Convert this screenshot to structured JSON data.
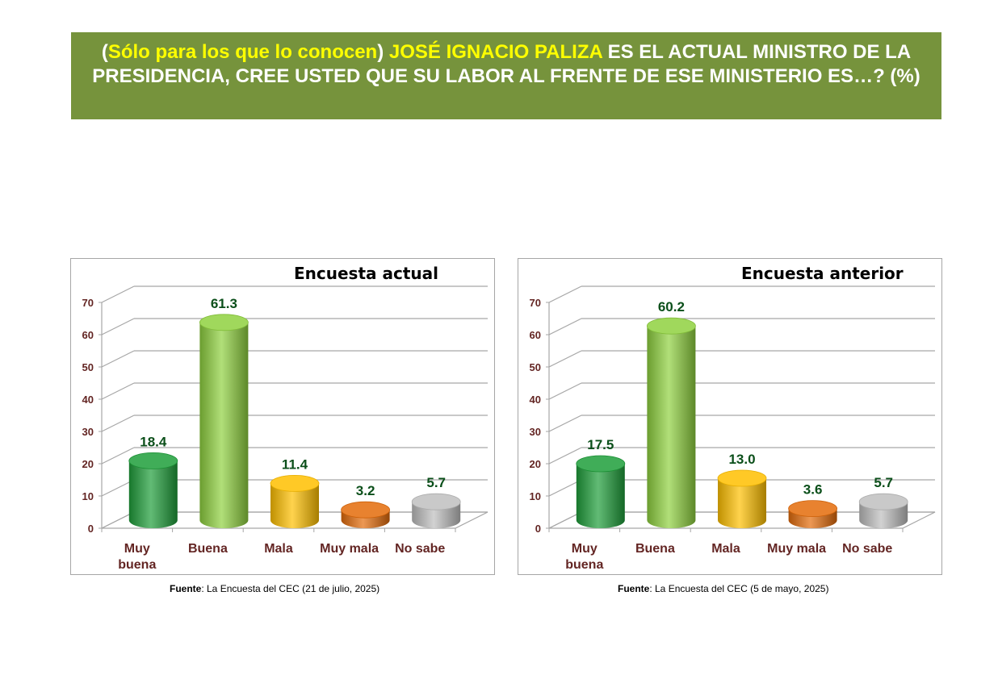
{
  "banner": {
    "open_paren": "(",
    "qualifier": "Sólo para los que lo conocen",
    "close_paren": ")",
    "name": "JOSÉ IGNACIO PALIZA",
    "question": "ES EL ACTUAL MINISTRO DE LA PRESIDENCIA, CREE USTED QUE SU LABOR AL FRENTE DE ESE MINISTERIO ES…? (%)"
  },
  "colors": {
    "banner_bg": "#76933c",
    "banner_highlight": "#ffff00",
    "muy_buena": "#1e9e3a",
    "buena": "#8fd13f",
    "mala": "#ffc000",
    "muy_mala": "#e46c0a",
    "no_sabe": "#bfbfbf",
    "value_label": "#0b4f1a",
    "axis_label": "#632523"
  },
  "chart_data": [
    {
      "type": "bar",
      "title": "Encuesta actual",
      "categories": [
        "Muy buena",
        "Buena",
        "Mala",
        "Muy mala",
        "No sabe"
      ],
      "category_lines": [
        [
          "Muy",
          "buena"
        ],
        [
          "Buena"
        ],
        [
          "Mala"
        ],
        [
          "Muy mala"
        ],
        [
          "No sabe"
        ]
      ],
      "values": [
        18.4,
        61.3,
        11.4,
        3.2,
        5.7
      ],
      "value_labels": [
        "18.4",
        "61.3",
        "11.4",
        "3.2",
        "5.7"
      ],
      "yticks": [
        "0",
        "10",
        "20",
        "30",
        "40",
        "50",
        "60",
        "70"
      ],
      "ylim": [
        0,
        70
      ],
      "xlabel": "",
      "ylabel": "",
      "grid": true,
      "source_bold": "Fuente",
      "source_text": ": La Encuesta del CEC (21 de julio, 2025)"
    },
    {
      "type": "bar",
      "title": "Encuesta anterior",
      "categories": [
        "Muy buena",
        "Buena",
        "Mala",
        "Muy mala",
        "No sabe"
      ],
      "category_lines": [
        [
          "Muy",
          "buena"
        ],
        [
          "Buena"
        ],
        [
          "Mala"
        ],
        [
          "Muy mala"
        ],
        [
          "No sabe"
        ]
      ],
      "values": [
        17.5,
        60.2,
        13.0,
        3.6,
        5.7
      ],
      "value_labels": [
        "17.5",
        "60.2",
        "13.0",
        "3.6",
        "5.7"
      ],
      "yticks": [
        "0",
        "10",
        "20",
        "30",
        "40",
        "50",
        "60",
        "70"
      ],
      "ylim": [
        0,
        70
      ],
      "xlabel": "",
      "ylabel": "",
      "grid": true,
      "source_bold": "Fuente",
      "source_text": ": La Encuesta del CEC (5 de mayo, 2025)"
    }
  ]
}
